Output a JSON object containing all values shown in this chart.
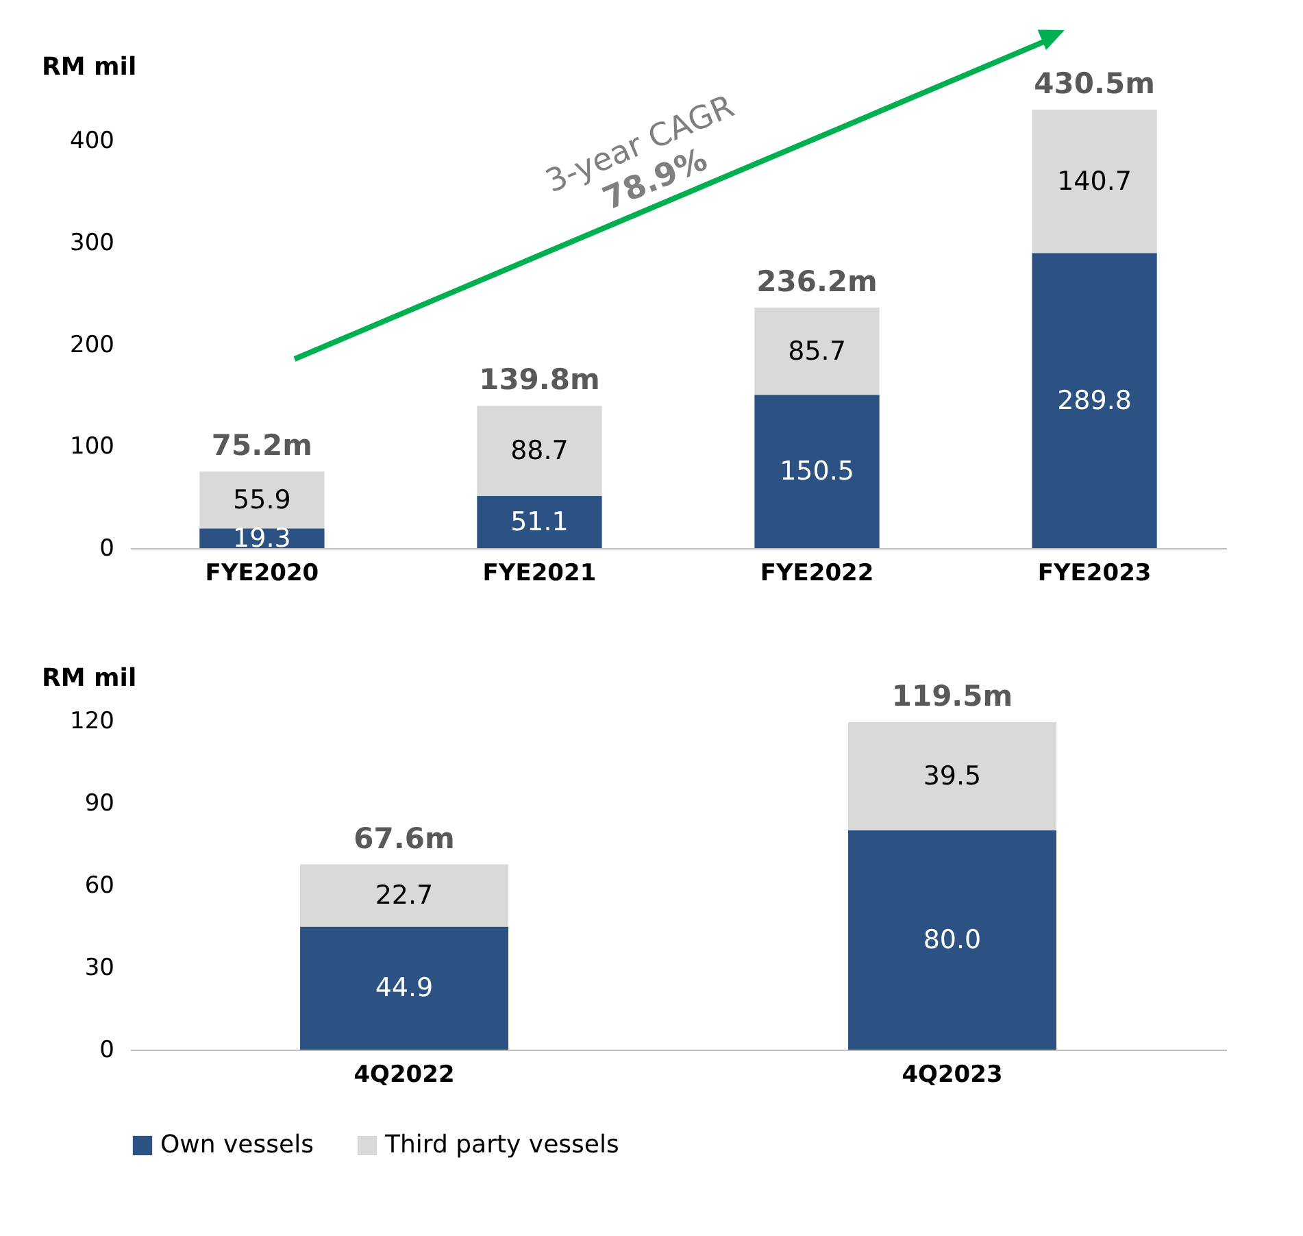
{
  "chart_data": [
    {
      "type": "bar",
      "ylabel": "RM mil",
      "categories": [
        "FYE2020",
        "FYE2021",
        "FYE2022",
        "FYE2023"
      ],
      "stacked": true,
      "ylim": [
        0,
        430.5
      ],
      "yticks": [
        0,
        100,
        200,
        300,
        400
      ],
      "grid": false,
      "legend": false,
      "series": [
        {
          "color": "#2b5282",
          "values": [
            19.3,
            51.1,
            150.5,
            289.8
          ],
          "value_labels": [
            "19.3",
            "51.1",
            "150.5",
            "289.8"
          ]
        },
        {
          "color": "#d9d9d9",
          "values": [
            55.9,
            88.7,
            85.7,
            140.7
          ],
          "value_labels": [
            "55.9",
            "88.7",
            "85.7",
            "140.7"
          ]
        }
      ],
      "totals": [
        "75.2m",
        "139.8m",
        "236.2m",
        "430.5m"
      ],
      "annotations": [
        "3-year CAGR",
        "78.9%"
      ]
    },
    {
      "type": "bar",
      "ylabel": "RM mil",
      "categories": [
        "4Q2022",
        "4Q2023"
      ],
      "stacked": true,
      "ylim": [
        0,
        120
      ],
      "yticks": [
        0,
        30,
        60,
        90,
        120
      ],
      "grid": false,
      "legend": "bottom",
      "series": [
        {
          "name": "Own vessels",
          "color": "#2b5282",
          "values": [
            44.9,
            80.0
          ],
          "value_labels": [
            "44.9",
            "80.0"
          ]
        },
        {
          "name": "Third party vessels",
          "color": "#d9d9d9",
          "values": [
            22.7,
            39.5
          ],
          "value_labels": [
            "22.7",
            "39.5"
          ]
        }
      ],
      "totals": [
        "67.6m",
        "119.5m"
      ]
    }
  ]
}
